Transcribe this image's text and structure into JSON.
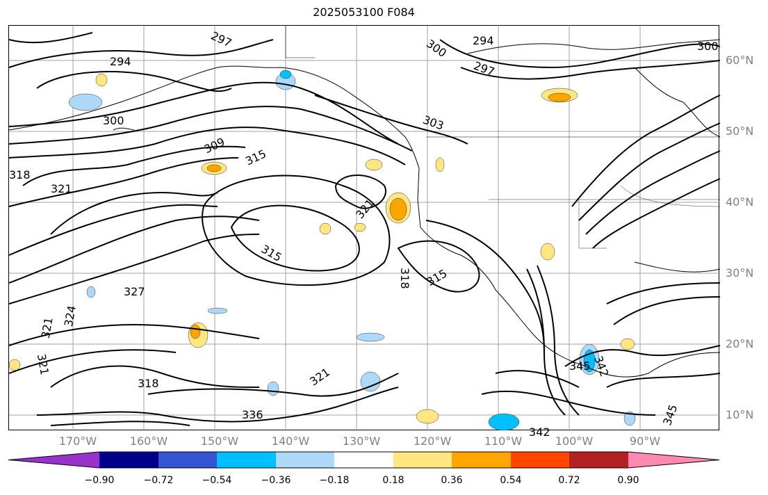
{
  "title": "2025053100 F084",
  "lat_labels": [
    "60°N",
    "50°N",
    "40°N",
    "30°N",
    "20°N",
    "10°N"
  ],
  "lon_labels": [
    "170°W",
    "160°W",
    "150°W",
    "140°W",
    "130°W",
    "120°W",
    "110°W",
    "100°W",
    "90°W"
  ],
  "contour_labels": [
    "297",
    "294",
    "300",
    "294",
    "297",
    "300",
    "303",
    "309",
    "315",
    "318",
    "321",
    "321",
    "315",
    "318",
    "315",
    "327",
    "324",
    "321",
    "321",
    "318",
    "321",
    "336",
    "342",
    "345",
    "342",
    "345",
    "300"
  ],
  "colorbar": {
    "colors": [
      "#9932cc",
      "#00008b",
      "#3454d1",
      "#00bfff",
      "#add8f8",
      "#ffffff",
      "#ffe680",
      "#ffa500",
      "#ff4500",
      "#b22222",
      "#ff89b0"
    ],
    "ticks": [
      "−0.90",
      "−0.72",
      "−0.54",
      "−0.36",
      "−0.18",
      "0.18",
      "0.36",
      "0.54",
      "0.72",
      "0.90"
    ]
  }
}
